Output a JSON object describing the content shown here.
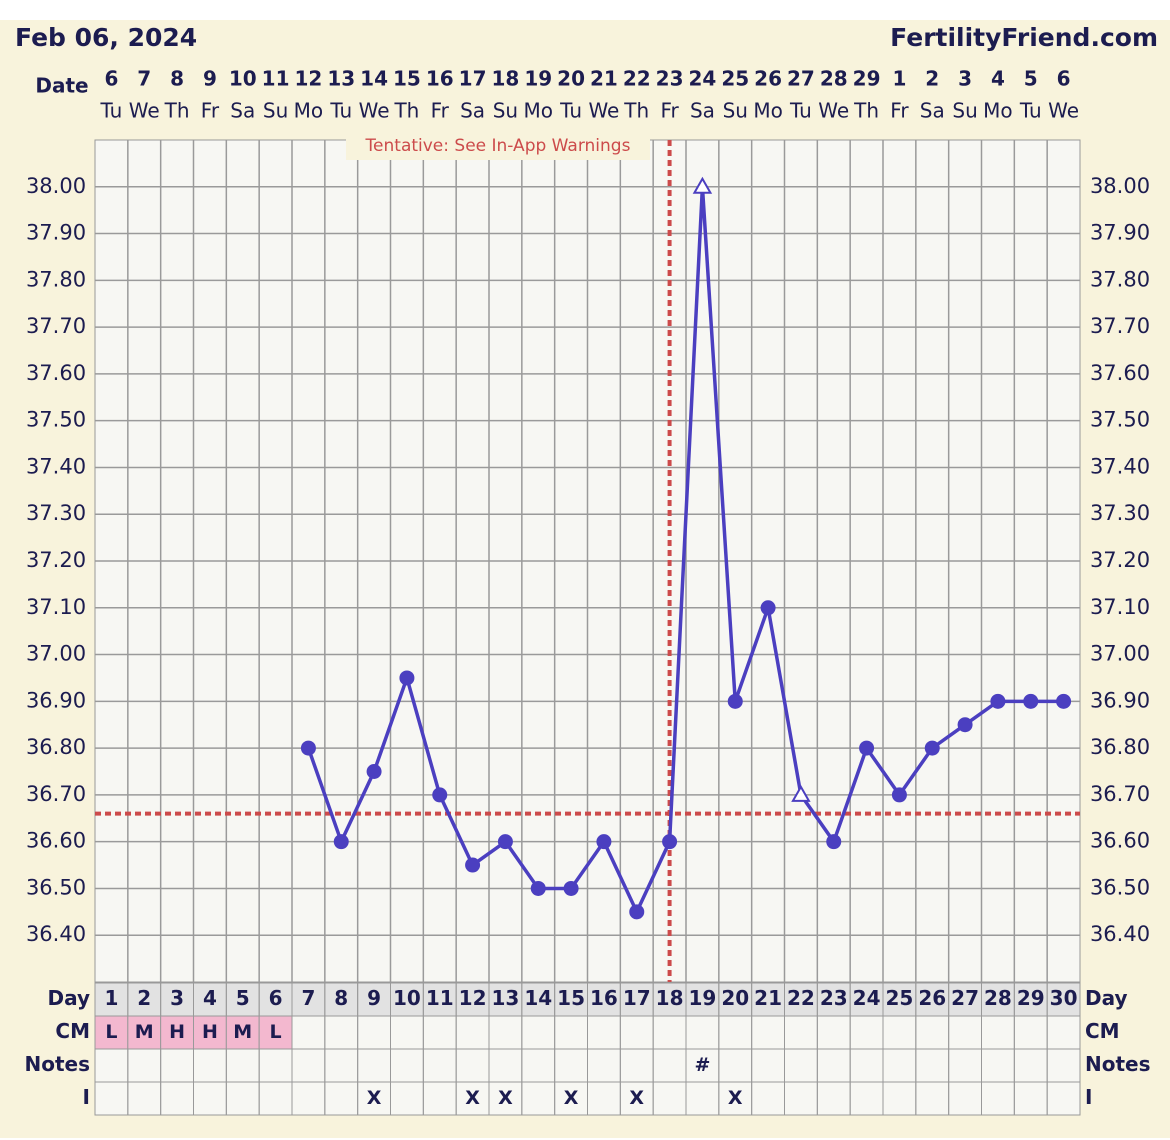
{
  "chart_data": {
    "type": "line",
    "title": "Feb 06, 2024",
    "subtitle": "FertilityFriend.com",
    "annotation": "Tentative: See In-App Warnings",
    "date_label": "Date",
    "dates": [
      6,
      7,
      8,
      9,
      10,
      11,
      12,
      13,
      14,
      15,
      16,
      17,
      18,
      19,
      20,
      21,
      22,
      23,
      24,
      25,
      26,
      27,
      28,
      29,
      1,
      2,
      3,
      4,
      5,
      6
    ],
    "weekdays": [
      "Tu",
      "We",
      "Th",
      "Fr",
      "Sa",
      "Su",
      "Mo",
      "Tu",
      "We",
      "Th",
      "Fr",
      "Sa",
      "Su",
      "Mo",
      "Tu",
      "We",
      "Th",
      "Fr",
      "Sa",
      "Su",
      "Mo",
      "Tu",
      "We",
      "Th",
      "Fr",
      "Sa",
      "Su",
      "Mo",
      "Tu",
      "We"
    ],
    "categories": [
      1,
      2,
      3,
      4,
      5,
      6,
      7,
      8,
      9,
      10,
      11,
      12,
      13,
      14,
      15,
      16,
      17,
      18,
      19,
      20,
      21,
      22,
      23,
      24,
      25,
      26,
      27,
      28,
      29,
      30
    ],
    "values": [
      null,
      null,
      null,
      null,
      null,
      null,
      36.8,
      36.6,
      36.75,
      36.95,
      36.7,
      36.55,
      36.6,
      36.5,
      36.5,
      36.6,
      36.45,
      36.6,
      38.0,
      36.9,
      37.1,
      36.7,
      36.6,
      36.8,
      36.7,
      36.8,
      36.85,
      36.9,
      36.9,
      36.9
    ],
    "point_styles": [
      null,
      null,
      null,
      null,
      null,
      null,
      "circle",
      "circle",
      "circle",
      "circle",
      "circle",
      "circle",
      "circle",
      "circle",
      "circle",
      "circle",
      "circle",
      "circle",
      "open-triangle",
      "circle",
      "circle",
      "open-triangle",
      "circle",
      "circle",
      "circle",
      "circle",
      "circle",
      "circle",
      "circle",
      "circle"
    ],
    "color": "#4b3fc0",
    "coverline": 36.66,
    "ovulation_day": 18,
    "reference_color": "#cc4b4b",
    "ylim": [
      36.3,
      38.1
    ],
    "yticks": [
      {
        "value": 36.4,
        "label": "36.40"
      },
      {
        "value": 36.5,
        "label": "36.50"
      },
      {
        "value": 36.6,
        "label": "36.60"
      },
      {
        "value": 36.7,
        "label": "36.70"
      },
      {
        "value": 36.8,
        "label": "36.80"
      },
      {
        "value": 36.9,
        "label": "36.90"
      },
      {
        "value": 37.0,
        "label": "37.00"
      },
      {
        "value": 37.1,
        "label": "37.10"
      },
      {
        "value": 37.2,
        "label": "37.20"
      },
      {
        "value": 37.3,
        "label": "37.30"
      },
      {
        "value": 37.4,
        "label": "37.40"
      },
      {
        "value": 37.5,
        "label": "37.50"
      },
      {
        "value": 37.6,
        "label": "37.60"
      },
      {
        "value": 37.7,
        "label": "37.70"
      },
      {
        "value": 37.8,
        "label": "37.80"
      },
      {
        "value": 37.9,
        "label": "37.90"
      },
      {
        "value": 38.0,
        "label": "38.00"
      }
    ],
    "grid": true,
    "rows": [
      {
        "label": "Day"
      },
      {
        "label": "CM",
        "color": "#f3b8cf",
        "values": [
          "L",
          "M",
          "H",
          "H",
          "M",
          "L",
          null,
          null,
          null,
          null,
          null,
          null,
          null,
          null,
          null,
          null,
          null,
          null,
          null,
          null,
          null,
          null,
          null,
          null,
          null,
          null,
          null,
          null,
          null,
          null
        ]
      },
      {
        "label": "Notes",
        "values": [
          null,
          null,
          null,
          null,
          null,
          null,
          null,
          null,
          null,
          null,
          null,
          null,
          null,
          null,
          null,
          null,
          null,
          null,
          "#",
          null,
          null,
          null,
          null,
          null,
          null,
          null,
          null,
          null,
          null,
          null
        ]
      },
      {
        "label": "I",
        "values": [
          null,
          null,
          null,
          null,
          null,
          null,
          null,
          null,
          "X",
          null,
          null,
          "X",
          "X",
          null,
          "X",
          null,
          "X",
          null,
          null,
          "X",
          null,
          null,
          null,
          null,
          null,
          null,
          null,
          null,
          null,
          null
        ]
      }
    ]
  }
}
